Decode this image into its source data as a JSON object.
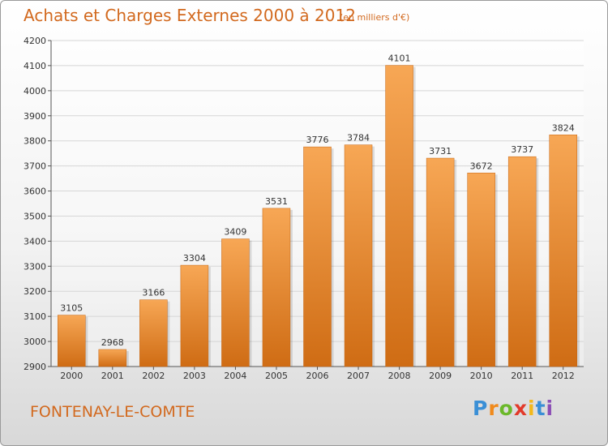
{
  "title": "Achats et Charges Externes 2000 à 2012",
  "subtitle": "(en milliers d'€)",
  "commune": "FONTENAY-LE-COMTE",
  "logo": {
    "letters": [
      "P",
      "r",
      "o",
      "x",
      "i",
      "t",
      "i"
    ],
    "colors": [
      "#3a8fd6",
      "#f08a1c",
      "#6bb82a",
      "#e23a2a",
      "#f2b81a",
      "#3a8fd6",
      "#8c4fb5"
    ]
  },
  "colors": {
    "bar_top": "#f7a755",
    "bar_bottom": "#cf6c14",
    "text": "#d2691e"
  },
  "chart_data": {
    "type": "bar",
    "categories": [
      "2000",
      "2001",
      "2002",
      "2003",
      "2004",
      "2005",
      "2006",
      "2007",
      "2008",
      "2009",
      "2010",
      "2011",
      "2012"
    ],
    "values": [
      3105,
      2968,
      3166,
      3304,
      3409,
      3531,
      3776,
      3784,
      4101,
      3731,
      3672,
      3737,
      3824
    ],
    "ylim": [
      2900,
      4200
    ],
    "yticks": [
      2900,
      3000,
      3100,
      3200,
      3300,
      3400,
      3500,
      3600,
      3700,
      3800,
      3900,
      4000,
      4100,
      4200
    ],
    "grid": true,
    "xlabel": "",
    "ylabel": ""
  }
}
